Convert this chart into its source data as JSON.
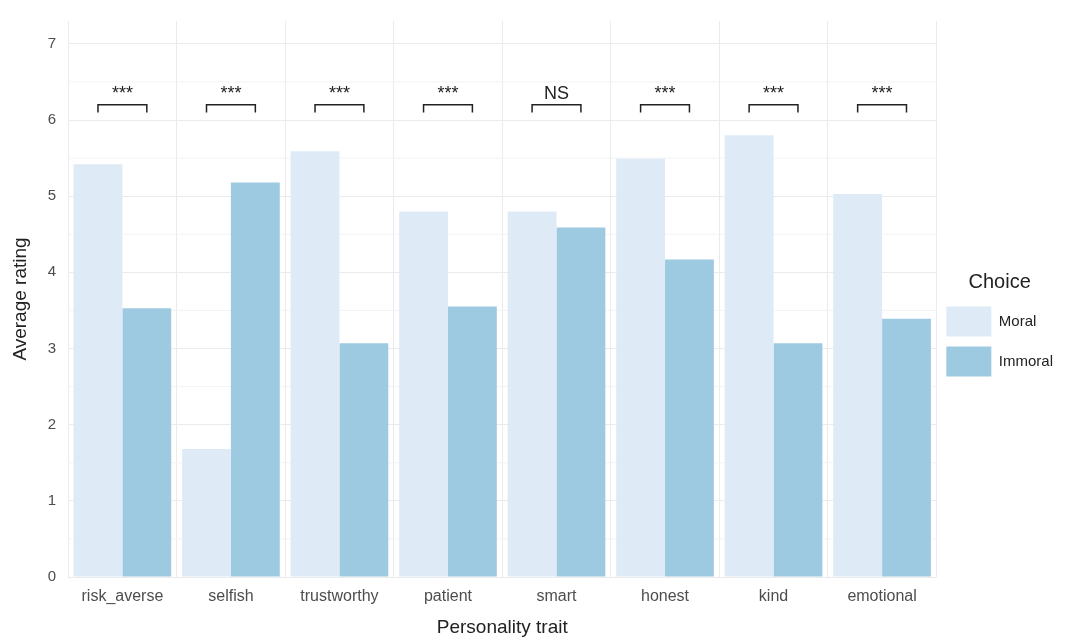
{
  "chart_data": {
    "type": "bar",
    "xlabel": "Personality trait",
    "ylabel": "Average rating",
    "legend_title": "Choice",
    "categories": [
      "risk_averse",
      "selfish",
      "trustworthy",
      "patient",
      "smart",
      "honest",
      "kind",
      "emotional"
    ],
    "series": [
      {
        "name": "Moral",
        "color": "#deebf7",
        "values": [
          5.42,
          1.68,
          5.59,
          4.8,
          4.8,
          5.49,
          5.8,
          5.03
        ]
      },
      {
        "name": "Immoral",
        "color": "#9ecae1",
        "values": [
          3.53,
          5.18,
          3.07,
          3.55,
          4.59,
          4.17,
          3.07,
          3.39
        ]
      }
    ],
    "ylim": [
      0,
      7.3
    ],
    "yticks": [
      0,
      1,
      2,
      3,
      4,
      5,
      6,
      7
    ],
    "grid": true,
    "legend": "right",
    "annotations": [
      "***",
      "***",
      "***",
      "***",
      "NS",
      "***",
      "***",
      "***"
    ]
  }
}
